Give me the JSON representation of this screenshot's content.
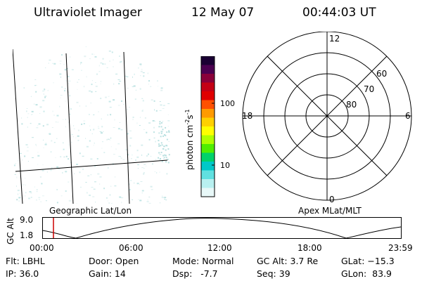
{
  "header": {
    "instrument": "Ultraviolet Imager",
    "date": "12 May 07",
    "time": "00:44:03 UT"
  },
  "colorbar": {
    "unit": "photon cm",
    "unit_sup1": "-2",
    "unit_s": "s",
    "unit_sup2": "-1",
    "ticks": [
      "100",
      "10"
    ],
    "colors": [
      "#1a0033",
      "#4b0050",
      "#8a003a",
      "#c40015",
      "#e00000",
      "#ff5000",
      "#ff9a00",
      "#ffd000",
      "#ffff00",
      "#b0ff00",
      "#50ee00",
      "#00d26a",
      "#00c8c8",
      "#60e0e0",
      "#b8f0f0",
      "#e8f8f8"
    ]
  },
  "polar": {
    "mlt_labels": {
      "top": "12",
      "left": "18",
      "right": "6",
      "bottom": "0"
    },
    "lat_labels": [
      "60",
      "70",
      "80"
    ]
  },
  "track": {
    "title_left": "Geographic Lat/Lon",
    "title_right": "Apex MLat/MLT",
    "axis_label": "GC Alt",
    "y_top": "9.0",
    "y_bottom": "1.8",
    "times": [
      "00:00",
      "06:00",
      "12:00",
      "18:00",
      "23:59"
    ],
    "marker_color": "#cc0000"
  },
  "info": {
    "flt": "Flt: LBHL",
    "ip": "IP: 36.0",
    "door": "Door: Open",
    "gain": "Gain: 14",
    "mode": "Mode: Normal",
    "dsp": "Dsp:   -7.7",
    "gcalt": "GC Alt: 3.7 Re",
    "seq": "Seq: 39",
    "glat": "GLat: −15.3",
    "glon": "GLon:  83.9"
  }
}
